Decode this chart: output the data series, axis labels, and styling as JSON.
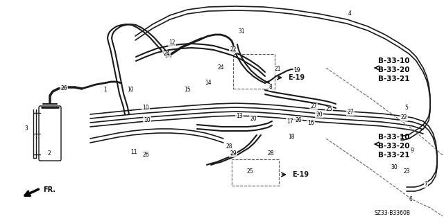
{
  "background_color": "#ffffff",
  "fig_width": 6.4,
  "fig_height": 3.19,
  "dpi": 100,
  "line_color": "#1a1a1a",
  "line_width": 1.0,
  "ref_labels_top": [
    "B-33-10",
    "B-33-20",
    "B-33-21"
  ],
  "ref_labels_bottom": [
    "B-33-10",
    "B-33-20",
    "B-33-21"
  ],
  "part_code": "SZ33-B3360B",
  "e19_label": "E-19"
}
